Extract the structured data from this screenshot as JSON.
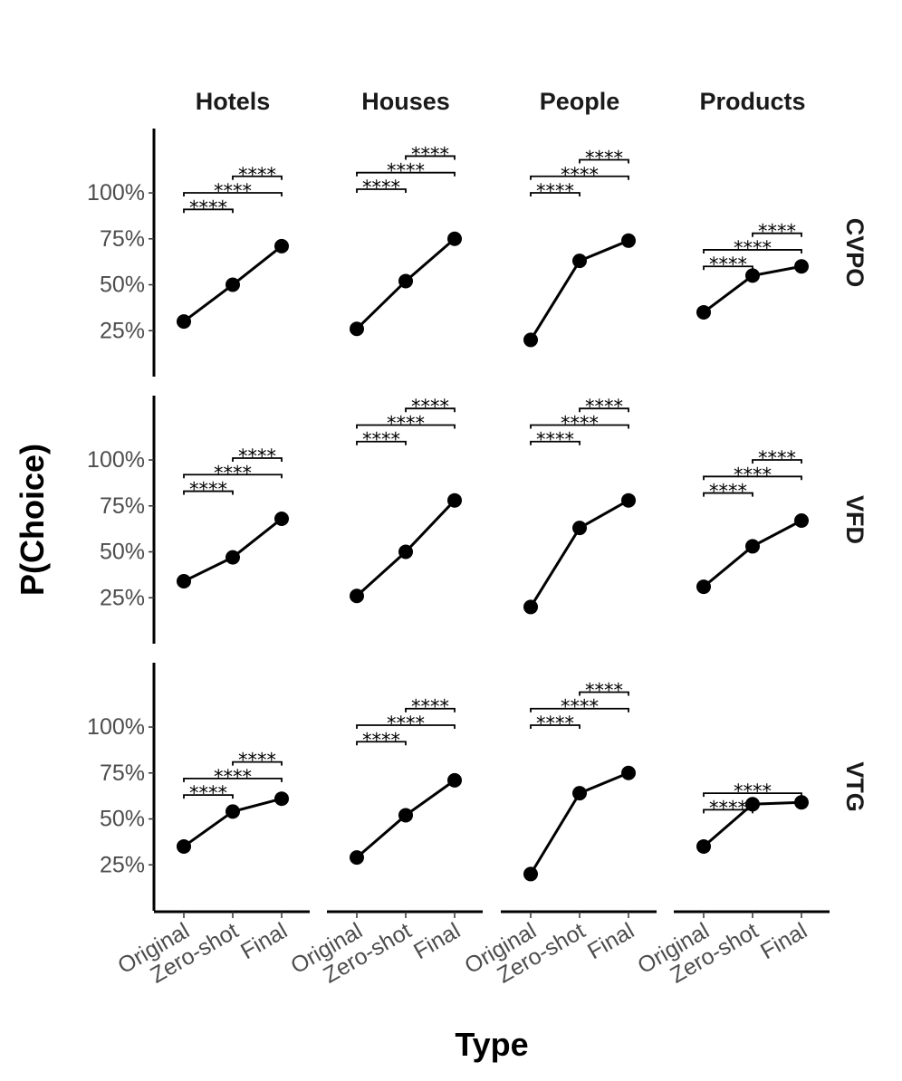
{
  "chart_data": {
    "type": "line",
    "ylabel": "P(Choice)",
    "xlabel": "Type",
    "categories": [
      "Original",
      "Zero-shot",
      "Final"
    ],
    "columns": [
      "Hotels",
      "Houses",
      "People",
      "Products"
    ],
    "rows": [
      "CVPO",
      "VFD",
      "VTG"
    ],
    "y_ticks": [
      25,
      50,
      75,
      100
    ],
    "y_tick_labels": [
      "25%",
      "50%",
      "75%",
      "100%"
    ],
    "ylim": [
      0,
      135
    ],
    "significance_label": "****",
    "panels": [
      {
        "row": "CVPO",
        "column": "Hotels",
        "values": [
          30,
          50,
          71
        ],
        "brackets": [
          {
            "from": 0,
            "to": 1,
            "y": 91,
            "label": "****"
          },
          {
            "from": 0,
            "to": 2,
            "y": 100,
            "label": "****"
          },
          {
            "from": 1,
            "to": 2,
            "y": 109,
            "label": "****"
          }
        ]
      },
      {
        "row": "CVPO",
        "column": "Houses",
        "values": [
          26,
          52,
          75
        ],
        "brackets": [
          {
            "from": 0,
            "to": 1,
            "y": 102,
            "label": "****"
          },
          {
            "from": 0,
            "to": 2,
            "y": 111,
            "label": "****"
          },
          {
            "from": 1,
            "to": 2,
            "y": 120,
            "label": "****"
          }
        ]
      },
      {
        "row": "CVPO",
        "column": "People",
        "values": [
          20,
          63,
          74
        ],
        "brackets": [
          {
            "from": 0,
            "to": 1,
            "y": 100,
            "label": "****"
          },
          {
            "from": 0,
            "to": 2,
            "y": 109,
            "label": "****"
          },
          {
            "from": 1,
            "to": 2,
            "y": 118,
            "label": "****"
          }
        ]
      },
      {
        "row": "CVPO",
        "column": "Products",
        "values": [
          35,
          55,
          60
        ],
        "brackets": [
          {
            "from": 0,
            "to": 1,
            "y": 60,
            "label": "****"
          },
          {
            "from": 0,
            "to": 2,
            "y": 69,
            "label": "****"
          },
          {
            "from": 1,
            "to": 2,
            "y": 78,
            "label": "****"
          }
        ]
      },
      {
        "row": "VFD",
        "column": "Hotels",
        "values": [
          34,
          47,
          68
        ],
        "brackets": [
          {
            "from": 0,
            "to": 1,
            "y": 83,
            "label": "****"
          },
          {
            "from": 0,
            "to": 2,
            "y": 92,
            "label": "****"
          },
          {
            "from": 1,
            "to": 2,
            "y": 101,
            "label": "****"
          }
        ]
      },
      {
        "row": "VFD",
        "column": "Houses",
        "values": [
          26,
          50,
          78
        ],
        "brackets": [
          {
            "from": 0,
            "to": 1,
            "y": 110,
            "label": "****"
          },
          {
            "from": 0,
            "to": 2,
            "y": 119,
            "label": "****"
          },
          {
            "from": 1,
            "to": 2,
            "y": 128,
            "label": "****"
          }
        ]
      },
      {
        "row": "VFD",
        "column": "People",
        "values": [
          20,
          63,
          78
        ],
        "brackets": [
          {
            "from": 0,
            "to": 1,
            "y": 110,
            "label": "****"
          },
          {
            "from": 0,
            "to": 2,
            "y": 119,
            "label": "****"
          },
          {
            "from": 1,
            "to": 2,
            "y": 128,
            "label": "****"
          }
        ]
      },
      {
        "row": "VFD",
        "column": "Products",
        "values": [
          31,
          53,
          67
        ],
        "brackets": [
          {
            "from": 0,
            "to": 1,
            "y": 82,
            "label": "****"
          },
          {
            "from": 0,
            "to": 2,
            "y": 91,
            "label": "****"
          },
          {
            "from": 1,
            "to": 2,
            "y": 100,
            "label": "****"
          }
        ]
      },
      {
        "row": "VTG",
        "column": "Hotels",
        "values": [
          35,
          54,
          61
        ],
        "brackets": [
          {
            "from": 0,
            "to": 1,
            "y": 63,
            "label": "****"
          },
          {
            "from": 0,
            "to": 2,
            "y": 72,
            "label": "****"
          },
          {
            "from": 1,
            "to": 2,
            "y": 81,
            "label": "****"
          }
        ]
      },
      {
        "row": "VTG",
        "column": "Houses",
        "values": [
          29,
          52,
          71
        ],
        "brackets": [
          {
            "from": 0,
            "to": 1,
            "y": 92,
            "label": "****"
          },
          {
            "from": 0,
            "to": 2,
            "y": 101,
            "label": "****"
          },
          {
            "from": 1,
            "to": 2,
            "y": 110,
            "label": "****"
          }
        ]
      },
      {
        "row": "VTG",
        "column": "People",
        "values": [
          20,
          64,
          75
        ],
        "brackets": [
          {
            "from": 0,
            "to": 1,
            "y": 101,
            "label": "****"
          },
          {
            "from": 0,
            "to": 2,
            "y": 110,
            "label": "****"
          },
          {
            "from": 1,
            "to": 2,
            "y": 119,
            "label": "****"
          }
        ]
      },
      {
        "row": "VTG",
        "column": "Products",
        "values": [
          35,
          58,
          59
        ],
        "brackets": [
          {
            "from": 0,
            "to": 1,
            "y": 55,
            "label": "****"
          },
          {
            "from": 0,
            "to": 2,
            "y": 64,
            "label": "****"
          }
        ]
      }
    ]
  }
}
